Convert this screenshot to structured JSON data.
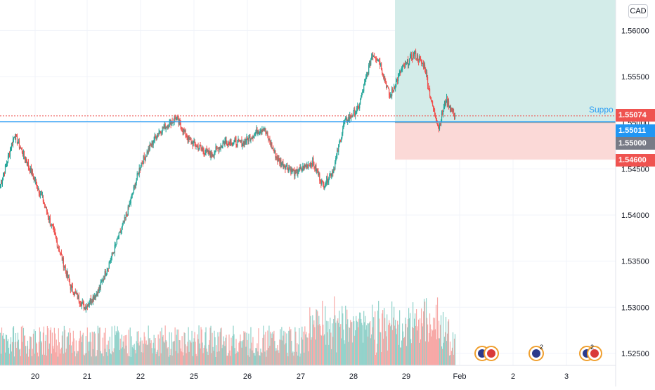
{
  "header": {
    "currency": "CAD"
  },
  "price_tags": {
    "last": "1.55074",
    "support": "1.55011",
    "entry": "1.55000",
    "stop": "1.54600"
  },
  "drawing": {
    "support_label": "Suppo"
  },
  "events": {
    "count_a": "2",
    "count_b": "2"
  },
  "colors": {
    "up": "#26a69a",
    "down": "#ef5350",
    "up_vol": "#8fd1c9",
    "down_vol": "#f7a9a7",
    "profit_zone": "#d3ece9",
    "loss_zone": "#fbd9d7",
    "support_line": "#2a9df4",
    "last_line": "#ef5350",
    "support_tag": "#2196f3",
    "entry_tag": "#787b86"
  },
  "chart_data": {
    "type": "candlestick",
    "y_ticks": [
      "1.56000",
      "1.55500",
      "1.55000",
      "1.54500",
      "1.54000",
      "1.53500",
      "1.53000",
      "1.52500"
    ],
    "ylim": [
      1.5237,
      1.5633
    ],
    "x_labels": [
      "20",
      "21",
      "22",
      "25",
      "26",
      "27",
      "28",
      "29",
      "Feb",
      "2",
      "3"
    ],
    "series_keypoints": [
      {
        "i": 0,
        "price": 1.5432
      },
      {
        "i": 20,
        "price": 1.5487
      },
      {
        "i": 35,
        "price": 1.5462
      },
      {
        "i": 60,
        "price": 1.5418
      },
      {
        "i": 85,
        "price": 1.536
      },
      {
        "i": 100,
        "price": 1.5322
      },
      {
        "i": 120,
        "price": 1.53
      },
      {
        "i": 140,
        "price": 1.5318
      },
      {
        "i": 160,
        "price": 1.5358
      },
      {
        "i": 180,
        "price": 1.54
      },
      {
        "i": 200,
        "price": 1.5455
      },
      {
        "i": 225,
        "price": 1.549
      },
      {
        "i": 250,
        "price": 1.5505
      },
      {
        "i": 270,
        "price": 1.548
      },
      {
        "i": 300,
        "price": 1.5465
      },
      {
        "i": 320,
        "price": 1.548
      },
      {
        "i": 345,
        "price": 1.5478
      },
      {
        "i": 365,
        "price": 1.549
      },
      {
        "i": 375,
        "price": 1.5495
      },
      {
        "i": 395,
        "price": 1.546
      },
      {
        "i": 420,
        "price": 1.5445
      },
      {
        "i": 445,
        "price": 1.5458
      },
      {
        "i": 460,
        "price": 1.5432
      },
      {
        "i": 475,
        "price": 1.545
      },
      {
        "i": 490,
        "price": 1.55
      },
      {
        "i": 510,
        "price": 1.5515
      },
      {
        "i": 530,
        "price": 1.5575
      },
      {
        "i": 540,
        "price": 1.5568
      },
      {
        "i": 555,
        "price": 1.5528
      },
      {
        "i": 570,
        "price": 1.5555
      },
      {
        "i": 590,
        "price": 1.5575
      },
      {
        "i": 605,
        "price": 1.556
      },
      {
        "i": 615,
        "price": 1.552
      },
      {
        "i": 625,
        "price": 1.5495
      },
      {
        "i": 635,
        "price": 1.5525
      },
      {
        "i": 648,
        "price": 1.5507
      }
    ],
    "levels": {
      "last": 1.55074,
      "support": 1.55011,
      "entry": 1.55,
      "stop": 1.546,
      "target_top": 1.5633
    }
  }
}
